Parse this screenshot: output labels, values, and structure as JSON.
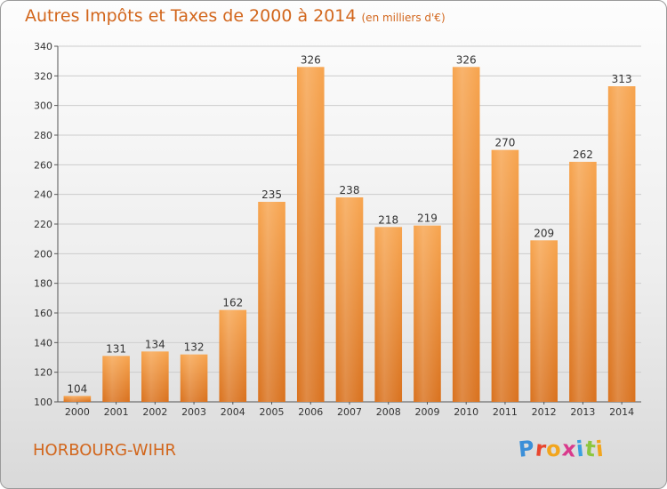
{
  "page": {
    "title": "Autres Impôts et Taxes de 2000 à 2014",
    "subtitle": "(en milliers d'€)",
    "commune": "HORBOURG-WIHR",
    "logo": "Proxiti",
    "colors": {
      "accent_text": "#d2661c",
      "bar_light": "#f7a44e",
      "bar_dark": "#d9711d",
      "grid": "#cccccc",
      "logo_letters": [
        "#3c8fd8",
        "#e8462e",
        "#f2a51d",
        "#d93a8c",
        "#3aa0e0",
        "#8cc63f",
        "#f2a51d"
      ]
    }
  },
  "chart_data": {
    "type": "bar",
    "title": "Autres Impôts et Taxes de 2000 à 2014",
    "subtitle": "(en milliers d'€)",
    "xlabel": "",
    "ylabel": "",
    "categories": [
      "2000",
      "2001",
      "2002",
      "2003",
      "2004",
      "2005",
      "2006",
      "2007",
      "2008",
      "2009",
      "2010",
      "2011",
      "2012",
      "2013",
      "2014"
    ],
    "values": [
      104,
      131,
      134,
      132,
      162,
      235,
      326,
      238,
      218,
      219,
      326,
      270,
      209,
      262,
      313
    ],
    "ylim": [
      100,
      340
    ],
    "yticks": [
      100,
      120,
      140,
      160,
      180,
      200,
      220,
      240,
      260,
      280,
      300,
      320,
      340
    ],
    "grid": true,
    "legend": "none"
  }
}
